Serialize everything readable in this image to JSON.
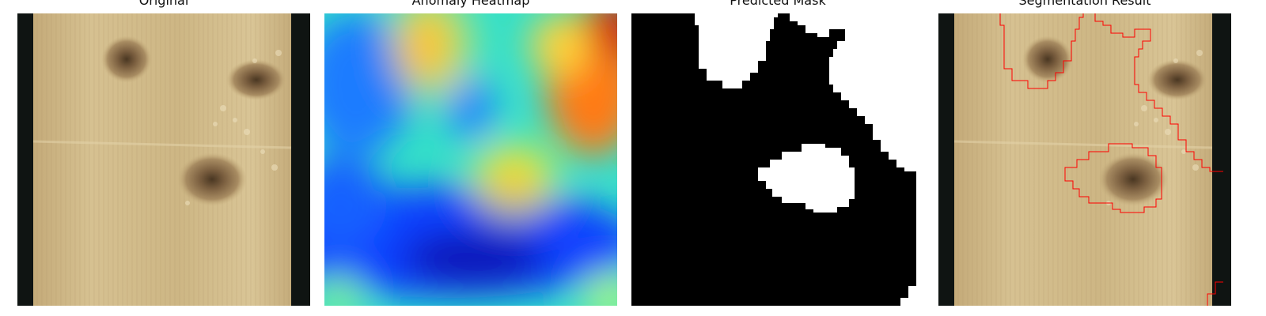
{
  "panels": [
    {
      "id": "original",
      "title": "Original"
    },
    {
      "id": "heatmap",
      "title": "Anomaly Heatmap"
    },
    {
      "id": "mask",
      "title": "Predicted Mask"
    },
    {
      "id": "segmentation",
      "title": "Segmentation Result"
    }
  ],
  "colors": {
    "wood_light": "#d8c394",
    "wood_mid": "#c8b07e",
    "wood_dark_edge": "#0f1412",
    "knot": "#7a5e3f",
    "mask_fg": "#ffffff",
    "mask_bg": "#000000",
    "contour": "#ff0000"
  }
}
